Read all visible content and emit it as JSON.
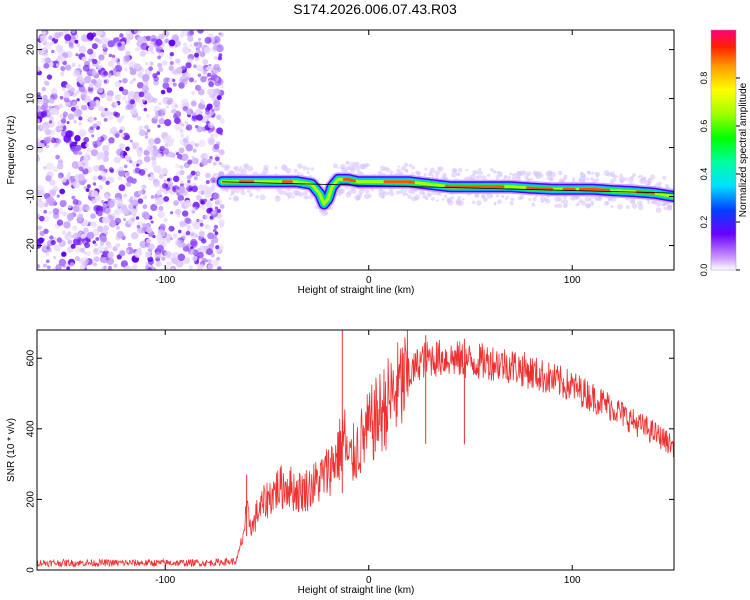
{
  "title": "S174.2026.006.07.43.R03",
  "chart_data": [
    {
      "type": "heatmap",
      "xlabel": "Height of straight line (km)",
      "ylabel": "Frequency (Hz)",
      "xlim": [
        -163,
        150
      ],
      "ylim": [
        -25,
        24
      ],
      "xticks": [
        -100,
        0,
        100
      ],
      "yticks": [
        -20,
        -10,
        0,
        10,
        20
      ],
      "grid": false,
      "noise_region_x": [
        -163,
        -72
      ],
      "trace": {
        "x": [
          -72,
          -60,
          -45,
          -35,
          -28,
          -24,
          -22,
          -20,
          -18,
          -15,
          -10,
          -5,
          0,
          10,
          20,
          30,
          40,
          50,
          60,
          70,
          80,
          90,
          100,
          110,
          120,
          130,
          140,
          150
        ],
        "freq": [
          -7,
          -7,
          -7,
          -7,
          -7.5,
          -9.5,
          -11.5,
          -10.5,
          -8,
          -6.5,
          -6.5,
          -7,
          -7,
          -7,
          -7,
          -7.5,
          -8,
          -8,
          -8,
          -8,
          -8.3,
          -8.5,
          -8.5,
          -8.5,
          -8.8,
          -9,
          -9.3,
          -10
        ]
      },
      "colorbar": {
        "label": "Normalized spectral amplitude",
        "range": [
          0,
          1
        ],
        "ticks": [
          "0.0",
          "0.2",
          "0.4",
          "0.6",
          "0.8"
        ]
      }
    },
    {
      "type": "line",
      "xlabel": "Height of straight line (km)",
      "ylabel": "SNR (10 * v/v)",
      "xlim": [
        -163,
        150
      ],
      "ylim": [
        0,
        680
      ],
      "xticks": [
        -100,
        0,
        100
      ],
      "yticks": [
        0,
        200,
        400,
        600
      ],
      "series": [
        {
          "name": "SNR",
          "color": "#ee3030",
          "x": [
            -163,
            -140,
            -120,
            -100,
            -80,
            -65,
            -62,
            -60,
            -57,
            -55,
            -50,
            -45,
            -40,
            -35,
            -30,
            -25,
            -20,
            -15,
            -12,
            -10,
            -5,
            0,
            10,
            20,
            25,
            30,
            40,
            50,
            60,
            70,
            80,
            90,
            100,
            110,
            120,
            130,
            140,
            150
          ],
          "values": [
            20,
            20,
            20,
            20,
            20,
            25,
            90,
            160,
            120,
            160,
            200,
            230,
            240,
            220,
            230,
            250,
            280,
            330,
            380,
            300,
            350,
            400,
            480,
            550,
            590,
            600,
            600,
            590,
            590,
            580,
            560,
            540,
            520,
            490,
            460,
            420,
            390,
            350
          ],
          "spikes": [
            {
              "x": -60,
              "y": 270
            },
            {
              "x": -13,
              "y": 690
            },
            {
              "x": 28,
              "y": 665
            },
            {
              "x": 47,
              "y": 655
            }
          ]
        }
      ]
    }
  ]
}
